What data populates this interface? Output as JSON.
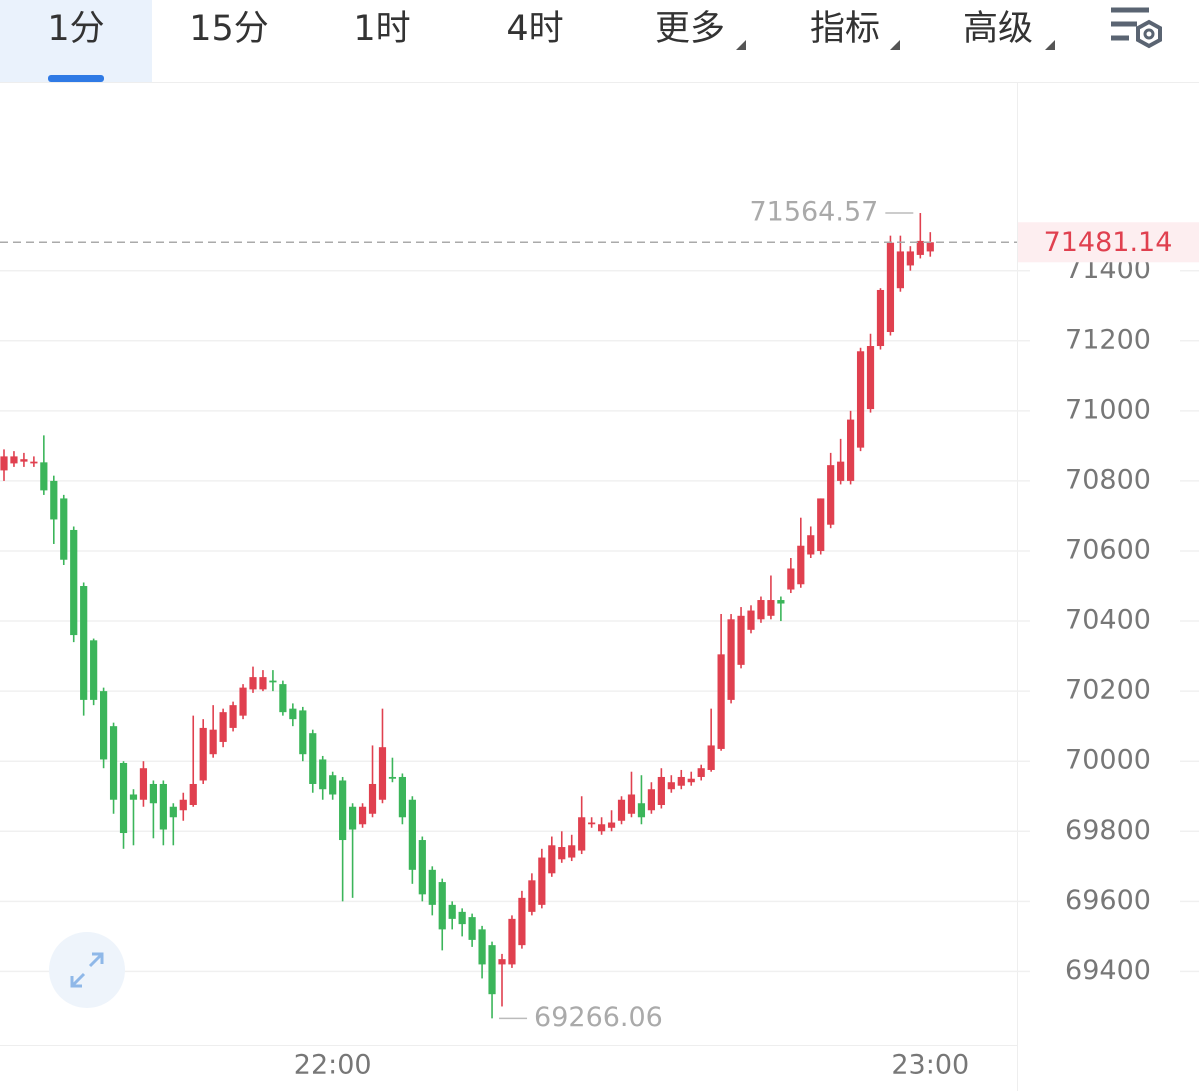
{
  "toolbar": {
    "tabs": [
      "1分",
      "15分",
      "1时",
      "4时",
      "更多",
      "指标",
      "高级"
    ]
  },
  "chart_data": {
    "type": "candlestick",
    "categories": [
      null,
      null,
      null,
      null,
      null,
      null,
      null,
      null,
      null,
      null,
      null,
      null,
      null,
      null,
      null,
      null,
      null,
      null,
      null,
      null,
      null,
      null,
      null,
      null,
      null,
      null,
      null,
      null,
      null,
      null,
      null,
      null,
      null,
      "22:00",
      null,
      null,
      null,
      null,
      null,
      null,
      null,
      null,
      null,
      null,
      null,
      null,
      null,
      null,
      null,
      null,
      null,
      null,
      null,
      null,
      null,
      null,
      null,
      null,
      null,
      null,
      null,
      null,
      null,
      null,
      null,
      null,
      null,
      null,
      null,
      null,
      null,
      null,
      null,
      null,
      null,
      null,
      null,
      null,
      null,
      null,
      null,
      null,
      null,
      null,
      null,
      null,
      null,
      null,
      null,
      null,
      null,
      null,
      null,
      "23:00"
    ],
    "series": [
      {
        "up_color": "#e0404f",
        "down_color": "#3bb55a",
        "open": [
          70830,
          70850,
          70855,
          70850,
          70853,
          70800,
          70750,
          70660,
          70500,
          70345,
          70200,
          70100,
          69995,
          69905,
          69890,
          69935,
          69935,
          69870,
          69860,
          69875,
          69945,
          70020,
          70055,
          70095,
          70130,
          70205,
          70205,
          70230,
          70220,
          70150,
          70145,
          70080,
          70005,
          69960,
          69945,
          69870,
          69820,
          69850,
          69890,
          69955,
          69955,
          69890,
          69775,
          69690,
          69655,
          69590,
          69570,
          69555,
          69520,
          69475,
          69420,
          69420,
          69475,
          69570,
          69590,
          69680,
          69720,
          69725,
          69745,
          69820,
          69800,
          69810,
          69830,
          69850,
          69880,
          69860,
          69875,
          69920,
          69930,
          69940,
          69955,
          69975,
          70035,
          70175,
          70275,
          70375,
          70405,
          70415,
          70460,
          70490,
          70505,
          70590,
          70600,
          70675,
          70800,
          70800,
          70895,
          71005,
          71185,
          71225,
          71350,
          71415,
          71445,
          71455
        ],
        "high": [
          70890,
          70885,
          70880,
          70870,
          70930,
          70815,
          70760,
          70670,
          70510,
          70350,
          70210,
          70110,
          70000,
          69920,
          70000,
          69945,
          69945,
          69880,
          69910,
          70130,
          70120,
          70160,
          70150,
          70170,
          70220,
          70270,
          70260,
          70260,
          70230,
          70165,
          70155,
          70090,
          70015,
          69970,
          69955,
          69880,
          69880,
          70045,
          70150,
          70010,
          69965,
          69900,
          69785,
          69700,
          69665,
          69600,
          69580,
          69565,
          69530,
          69485,
          69450,
          69560,
          69630,
          69680,
          69750,
          69785,
          69800,
          69790,
          69900,
          69840,
          69840,
          69860,
          69900,
          69970,
          69960,
          69940,
          69980,
          69960,
          69975,
          69970,
          69990,
          70150,
          70420,
          70420,
          70440,
          70445,
          70470,
          70530,
          70470,
          70580,
          70695,
          70670,
          70750,
          70880,
          70920,
          71000,
          71180,
          71220,
          71350,
          71500,
          71500,
          71470,
          71564.57,
          71510
        ],
        "low": [
          70800,
          70840,
          70840,
          70840,
          70760,
          70620,
          70560,
          70340,
          70130,
          70160,
          69980,
          69850,
          69750,
          69760,
          69870,
          69780,
          69760,
          69760,
          69830,
          69870,
          69935,
          70010,
          70040,
          70085,
          70120,
          70195,
          70200,
          70200,
          70130,
          70100,
          70000,
          69910,
          69890,
          69890,
          69600,
          69610,
          69810,
          69840,
          69880,
          69940,
          69820,
          69650,
          69600,
          69560,
          69460,
          69520,
          69500,
          69470,
          69380,
          69266.06,
          69300,
          69410,
          69465,
          69560,
          69580,
          69670,
          69710,
          69715,
          69735,
          69810,
          69790,
          69800,
          69820,
          69840,
          69820,
          69850,
          69865,
          69910,
          69920,
          69930,
          69945,
          69970,
          70030,
          70165,
          70265,
          70365,
          70395,
          70405,
          70400,
          70480,
          70495,
          70580,
          70590,
          70665,
          70790,
          70790,
          70885,
          70995,
          71175,
          71215,
          71340,
          71400,
          71435,
          71440
        ],
        "close": [
          70870,
          70870,
          70862,
          70855,
          70773,
          70690,
          70575,
          70360,
          70175,
          70175,
          70005,
          69890,
          69795,
          69890,
          69980,
          69880,
          69805,
          69840,
          69890,
          69935,
          70095,
          70090,
          70140,
          70160,
          70210,
          70240,
          70240,
          70225,
          70140,
          70120,
          70020,
          69935,
          69920,
          69905,
          69775,
          69805,
          69870,
          69935,
          70040,
          69950,
          69840,
          69690,
          69620,
          69590,
          69520,
          69550,
          69535,
          69490,
          69420,
          69335,
          69435,
          69550,
          69610,
          69660,
          69725,
          69760,
          69755,
          69760,
          69840,
          69825,
          69820,
          69825,
          69890,
          69905,
          69840,
          69920,
          69955,
          69940,
          69955,
          69950,
          69980,
          70045,
          70305,
          70405,
          70415,
          70430,
          70460,
          70460,
          70450,
          70550,
          70615,
          70645,
          70750,
          70845,
          70855,
          70975,
          71170,
          71185,
          71345,
          71480,
          71455,
          71455,
          71485,
          71481.14
        ]
      }
    ],
    "ylim": [
      69190,
      71930
    ],
    "yticks": [
      69400,
      69600,
      69800,
      70000,
      70200,
      70400,
      70600,
      70800,
      71000,
      71200,
      71400
    ],
    "grid": true
  }
}
